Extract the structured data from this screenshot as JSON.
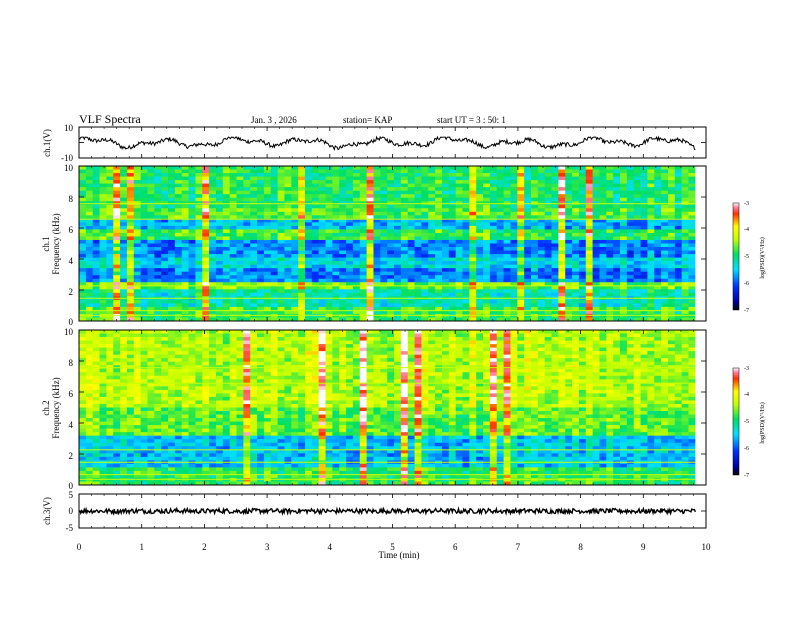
{
  "header": {
    "title": "VLF Spectra",
    "date": "Jan. 3 , 2026",
    "station": "station= KAP",
    "start_ut": "start  UT =  3 : 50: 1"
  },
  "chart_data": [
    {
      "id": "ch1-waveform",
      "type": "line",
      "ylabel": "ch.1(V)",
      "ylim": [
        -10,
        10
      ],
      "ytick_labels": [
        "10",
        "-10"
      ],
      "x_range_min": [
        0,
        9.83
      ],
      "y_range_v": [
        -4.5,
        3.5
      ],
      "description_series": "ch.1 signal"
    },
    {
      "id": "ch1-spectrogram",
      "type": "heatmap",
      "ylabel_top": "ch.1",
      "ylabel": "Frequency  (kHz)",
      "ylim": [
        0,
        10
      ],
      "ytick_labels": [
        "10",
        "8",
        "6",
        "4",
        "2",
        "0"
      ],
      "color_range": [
        -7,
        -3
      ],
      "colorbar_ticks": [
        "-3",
        "-4",
        "-5",
        "-6",
        "-7"
      ],
      "colorbar_label": "log(PSD)(V²/Hz)",
      "bands_khz": [
        {
          "from": 0,
          "to": 1.0,
          "level": -4.8
        },
        {
          "from": 1.0,
          "to": 2.1,
          "level": -5.2
        },
        {
          "from": 2.1,
          "to": 2.5,
          "level": -4.6
        },
        {
          "from": 2.5,
          "to": 3.5,
          "level": -5.8
        },
        {
          "from": 3.5,
          "to": 4.2,
          "level": -5.4
        },
        {
          "from": 4.2,
          "to": 5.2,
          "level": -5.8
        },
        {
          "from": 5.2,
          "to": 5.8,
          "level": -4.8
        },
        {
          "from": 5.8,
          "to": 6.6,
          "level": -5.6
        },
        {
          "from": 6.6,
          "to": 7.2,
          "level": -4.7
        },
        {
          "from": 7.2,
          "to": 10,
          "level": -4.9
        }
      ]
    },
    {
      "id": "ch2-spectrogram",
      "type": "heatmap",
      "ylabel_top": "ch.2",
      "ylabel": "Frequency  (kHz)",
      "ylim": [
        0,
        10
      ],
      "ytick_labels": [
        "10",
        "8",
        "6",
        "4",
        "2",
        "0"
      ],
      "color_range": [
        -7,
        -3
      ],
      "colorbar_ticks": [
        "-3",
        "-4",
        "-5",
        "-6",
        "-7"
      ],
      "colorbar_label": "log(PSD)(V²/Hz)",
      "bands_khz": [
        {
          "from": 0,
          "to": 1.1,
          "level": -4.8
        },
        {
          "from": 1.1,
          "to": 3.2,
          "level": -5.5
        },
        {
          "from": 3.2,
          "to": 5.0,
          "level": -4.6
        },
        {
          "from": 5.0,
          "to": 10,
          "level": -4.3
        }
      ]
    },
    {
      "id": "ch3-waveform",
      "type": "line",
      "ylabel": "ch.3(V)",
      "ylim": [
        -5,
        5
      ],
      "ytick_labels": [
        "5",
        "0",
        "-5"
      ],
      "x_range_min": [
        0,
        9.83
      ],
      "y_range_v": [
        -0.9,
        0.9
      ],
      "description_series": "ch.3 signal"
    },
    {
      "id": "time-axis",
      "type": "table",
      "xlabel": "Time  (min)",
      "xlim": [
        0,
        10
      ],
      "xtick_labels": [
        "0",
        "1",
        "2",
        "3",
        "4",
        "5",
        "6",
        "7",
        "8",
        "9",
        "10"
      ]
    }
  ]
}
